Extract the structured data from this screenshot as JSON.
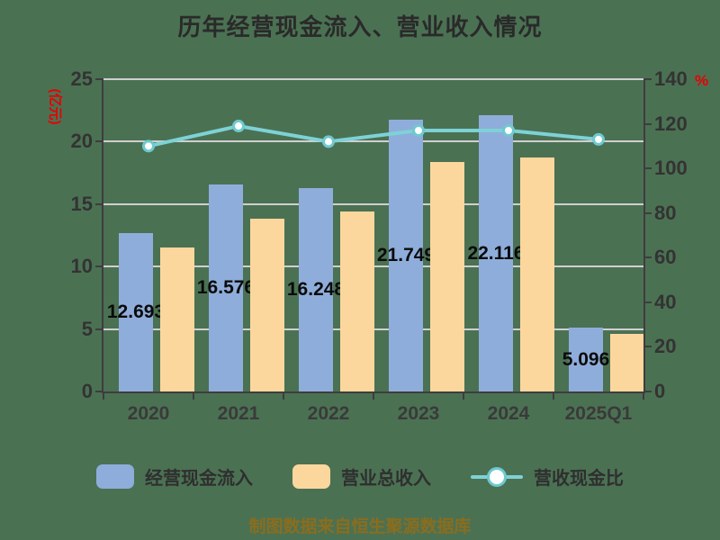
{
  "title": "历年经营现金流入、营业收入情况",
  "footer": "制图数据来自恒生聚源数据库",
  "axes": {
    "left_unit": "(亿元)",
    "right_unit": "%",
    "left_ticks": [
      0,
      5,
      10,
      15,
      20,
      25
    ],
    "right_ticks": [
      0,
      20,
      40,
      60,
      80,
      100,
      120,
      140
    ]
  },
  "legend": [
    {
      "label": "经营现金流入",
      "type": "bar",
      "color": "#8fadda"
    },
    {
      "label": "营业总收入",
      "type": "bar",
      "color": "#fcd79d"
    },
    {
      "label": "营收现金比",
      "type": "line",
      "color": "#7dd2d6"
    }
  ],
  "colors": {
    "background": "#4b7153",
    "bar_cash_inflow": "#8fadda",
    "bar_revenue": "#fcd79d",
    "ratio_line": "#7dd2d6",
    "axis_unit_red": "#e80000",
    "gridline": "#cfcfcf",
    "title_text": "#2a2a2a",
    "footer_text": "#8a6d1e"
  },
  "chart_data": {
    "type": "bar",
    "subtype": "grouped-bars-with-line",
    "title": "历年经营现金流入、营业收入情况",
    "categories": [
      "2020",
      "2021",
      "2022",
      "2023",
      "2024",
      "2025Q1"
    ],
    "series": [
      {
        "name": "经营现金流入",
        "type": "bar",
        "axis": "left",
        "color": "#8fadda",
        "values": [
          12.693,
          16.576,
          16.248,
          21.749,
          22.116,
          5.096
        ],
        "labels": [
          "12.693",
          "16.576",
          "16.248",
          "21.749",
          "22.116",
          "5.096"
        ]
      },
      {
        "name": "营业总收入",
        "type": "bar",
        "axis": "left",
        "color": "#fcd79d",
        "values": [
          11.5,
          13.8,
          14.4,
          18.4,
          18.7,
          4.6
        ]
      },
      {
        "name": "营收现金比",
        "type": "line",
        "axis": "right",
        "color": "#7dd2d6",
        "marker": "circle-white-fill",
        "values": [
          110,
          119,
          112,
          117,
          117,
          113
        ]
      }
    ],
    "left_axis": {
      "unit": "(亿元)",
      "range": [
        0,
        25
      ],
      "ticks": [
        0,
        5,
        10,
        15,
        20,
        25
      ]
    },
    "right_axis": {
      "unit": "%",
      "range": [
        0,
        140
      ],
      "ticks": [
        0,
        20,
        40,
        60,
        80,
        100,
        120,
        140
      ]
    },
    "grid": true,
    "legend_position": "bottom",
    "source_note": "制图数据来自恒生聚源数据库"
  }
}
